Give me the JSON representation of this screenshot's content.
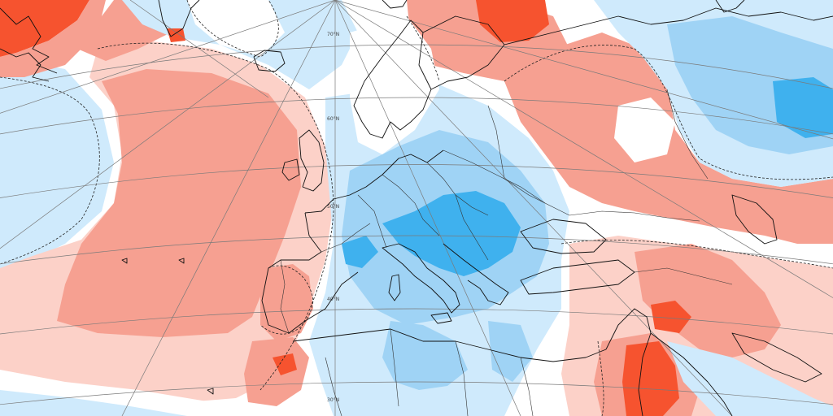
{
  "map": {
    "projection": "polar-stereographic-europe",
    "colors": {
      "strong_positive": "#f6532f",
      "positive": "#f6a091",
      "weak_positive": "#fcd1c8",
      "neutral": "#ffffff",
      "weak_negative": "#cfeafc",
      "negative": "#9fd3f5",
      "strong_negative": "#3fb1ee",
      "coastline": "#111111",
      "graticule": "#7a7a7a"
    },
    "graticule_labels": {
      "lat70": "70°N",
      "lat60": "60°N",
      "lat50": "50°N",
      "lat40": "40°N",
      "lat30": "30°N"
    }
  }
}
